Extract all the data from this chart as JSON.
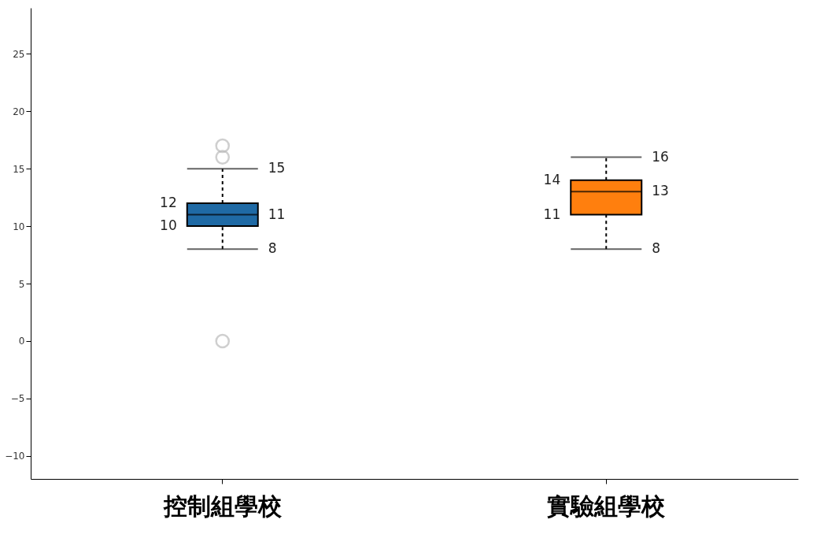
{
  "chart_data": {
    "type": "box",
    "categories": [
      "控制組學校",
      "實驗組學校"
    ],
    "boxes": [
      {
        "low": 8,
        "q1": 10,
        "median": 11,
        "q3": 12,
        "high": 15,
        "outliers": [
          17,
          16,
          0
        ]
      },
      {
        "low": 8,
        "q1": 11,
        "median": 13,
        "q3": 14,
        "high": 16
      }
    ],
    "colors": [
      "#1f6aa5",
      "#ff7f0e"
    ],
    "ylim": [
      -12,
      29
    ],
    "yticks": [
      -10,
      -5,
      0,
      5,
      10,
      15,
      20,
      25
    ],
    "annotations": [
      "15",
      "12",
      "11",
      "10",
      "8",
      "16",
      "14",
      "13",
      "11",
      "8"
    ],
    "data_labels": true,
    "grid": false,
    "legend": false
  }
}
